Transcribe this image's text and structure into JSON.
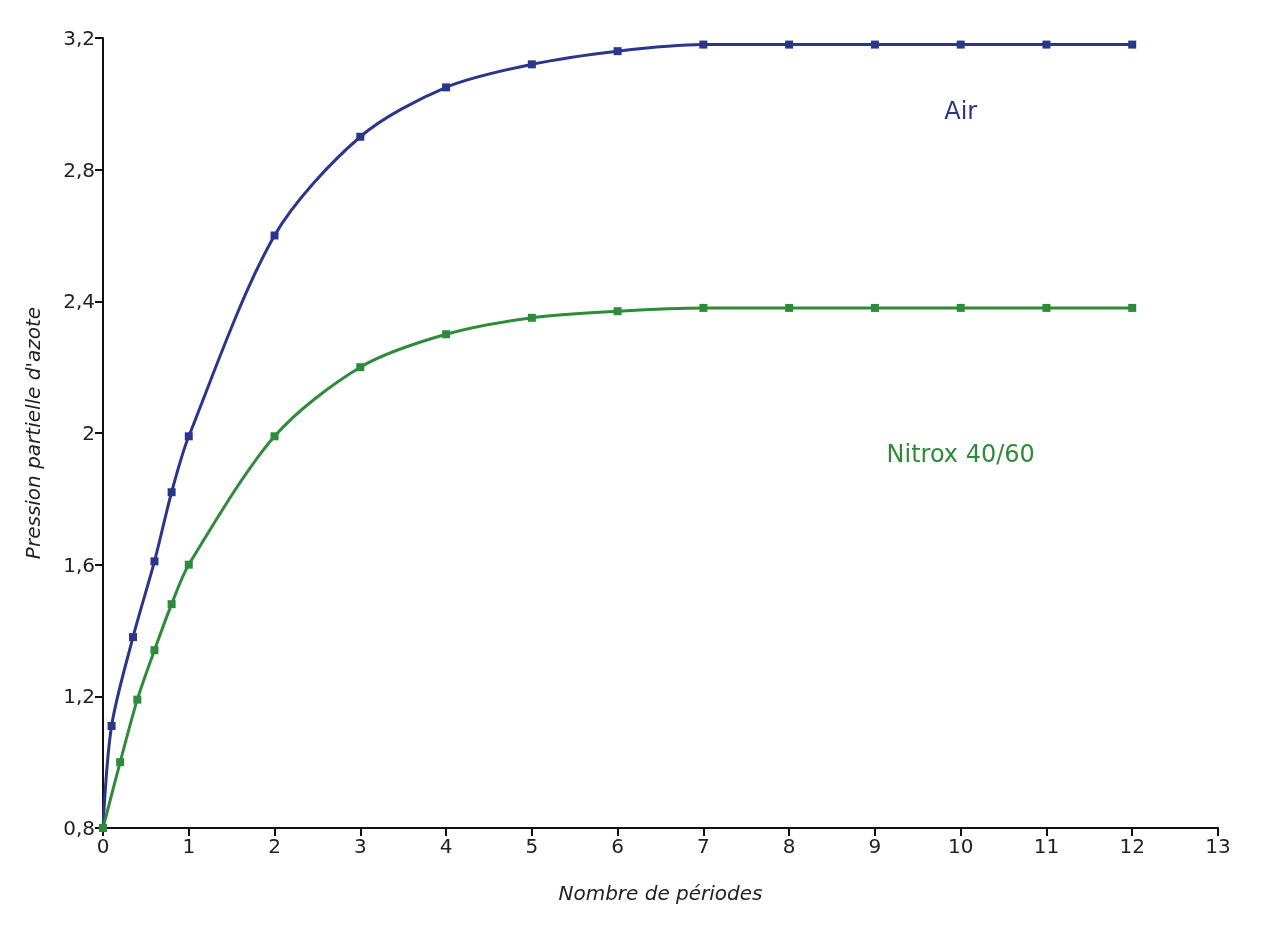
{
  "chart_data": {
    "type": "line",
    "xlabel": "Nombre de périodes",
    "ylabel": "Pression partielle d'azote",
    "xlim": [
      0,
      13
    ],
    "xticks": [
      0,
      1,
      2,
      3,
      4,
      5,
      6,
      7,
      8,
      9,
      10,
      11,
      12,
      13
    ],
    "ylim": [
      0.8,
      3.2
    ],
    "yticks": [
      {
        "value": 0.8,
        "label": "0,8"
      },
      {
        "value": 1.2,
        "label": "1,2"
      },
      {
        "value": 1.6,
        "label": "1,6"
      },
      {
        "value": 2,
        "label": "2"
      },
      {
        "value": 2.4,
        "label": "2,4"
      },
      {
        "value": 2.8,
        "label": "2,8"
      },
      {
        "value": 3.2,
        "label": "3,2"
      }
    ],
    "grid": false,
    "marker": "square",
    "line_style": "solid",
    "legend": false,
    "series": [
      {
        "name": "Air",
        "color": "#2b358c",
        "x": [
          0,
          0.1,
          0.35,
          0.6,
          0.8,
          1,
          2,
          3,
          4,
          5,
          6,
          7,
          8,
          9,
          10,
          11,
          12
        ],
        "values": [
          0.8,
          1.11,
          1.38,
          1.61,
          1.82,
          1.99,
          2.6,
          2.9,
          3.05,
          3.12,
          3.16,
          3.18,
          3.18,
          3.18,
          3.18,
          3.18,
          3.18
        ]
      },
      {
        "name": "Nitrox 40/60",
        "color": "#2e8b3a",
        "x": [
          0,
          0.2,
          0.4,
          0.6,
          0.8,
          1,
          2,
          3,
          4,
          5,
          6,
          7,
          8,
          9,
          10,
          11,
          12
        ],
        "values": [
          0.8,
          1.0,
          1.19,
          1.34,
          1.48,
          1.6,
          1.99,
          2.2,
          2.3,
          2.35,
          2.37,
          2.38,
          2.38,
          2.38,
          2.38,
          2.38,
          2.38
        ]
      }
    ]
  }
}
